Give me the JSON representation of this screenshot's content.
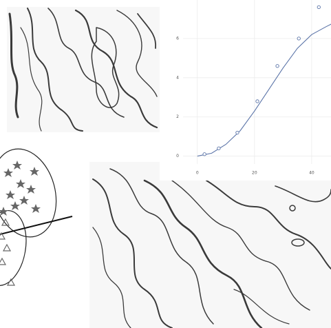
{
  "chart_data": {
    "type": "scatter",
    "x": [
      2.5,
      7.5,
      14,
      21,
      28,
      35.5,
      42.5
    ],
    "values": [
      0.1,
      0.4,
      1.2,
      2.8,
      4.6,
      6,
      7.6
    ],
    "fit": {
      "x": [
        0,
        5,
        10,
        15,
        20,
        25,
        30,
        35,
        40,
        45,
        47
      ],
      "values": [
        0,
        0.15,
        0.6,
        1.3,
        2.3,
        3.4,
        4.5,
        5.5,
        6.2,
        6.6,
        6.75
      ]
    },
    "color": "#5b74a8",
    "xlim": [
      -5,
      47
    ],
    "ylim": [
      -0.4,
      8
    ],
    "xticks": [
      0,
      20,
      40
    ],
    "yticks": [
      0,
      2,
      4,
      6
    ],
    "grid": true
  }
}
